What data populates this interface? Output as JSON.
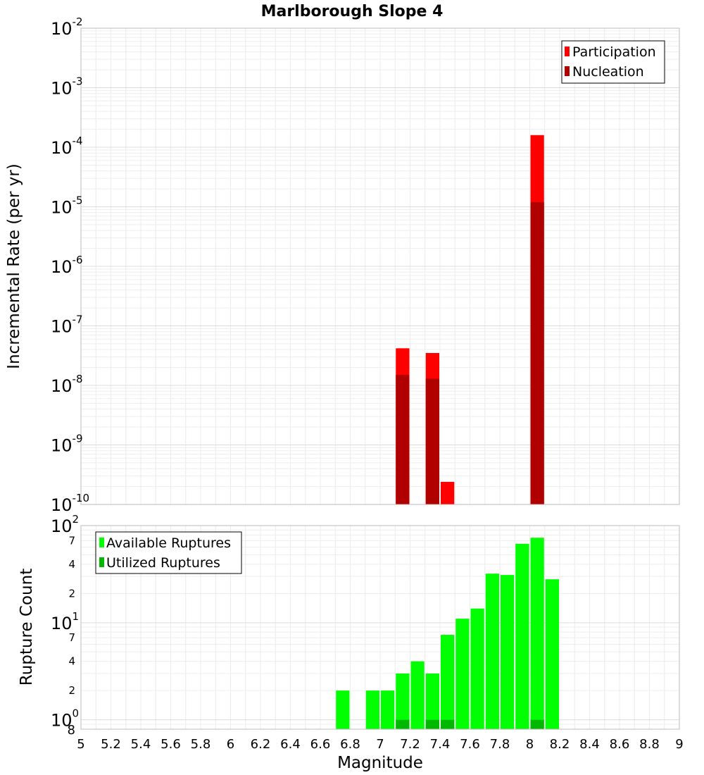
{
  "chart_data": [
    {
      "type": "bar",
      "title": "Marlborough Slope 4",
      "xlabel": "",
      "ylabel": "Incremental Rate (per yr)",
      "yscale": "log",
      "ylim": [
        1e-10,
        0.01
      ],
      "xlim": [
        5,
        9
      ],
      "bin_width": 0.1,
      "y_decades": [
        {
          "base": "10",
          "exp": "-10"
        },
        {
          "base": "10",
          "exp": "-9"
        },
        {
          "base": "10",
          "exp": "-8"
        },
        {
          "base": "10",
          "exp": "-7"
        },
        {
          "base": "10",
          "exp": "-6"
        },
        {
          "base": "10",
          "exp": "-5"
        },
        {
          "base": "10",
          "exp": "-4"
        },
        {
          "base": "10",
          "exp": "-3"
        },
        {
          "base": "10",
          "exp": "-2"
        }
      ],
      "legend": {
        "position": "top-right",
        "entries": [
          "Participation",
          "Nucleation"
        ]
      },
      "series": [
        {
          "name": "Participation",
          "color": "#ff0000",
          "points": [
            {
              "x": 7.15,
              "y": 4.2e-08
            },
            {
              "x": 7.35,
              "y": 3.5e-08
            },
            {
              "x": 7.45,
              "y": 2.4e-10
            },
            {
              "x": 8.05,
              "y": 0.00016
            }
          ]
        },
        {
          "name": "Nucleation",
          "color": "#b00000",
          "points": [
            {
              "x": 7.15,
              "y": 1.5e-08
            },
            {
              "x": 7.35,
              "y": 1.3e-08
            },
            {
              "x": 8.05,
              "y": 1.2e-05
            }
          ]
        }
      ]
    },
    {
      "type": "bar",
      "title": "",
      "xlabel": "Magnitude",
      "ylabel": "Rupture Count",
      "yscale": "log",
      "ylim": [
        0.8,
        100
      ],
      "xlim": [
        5,
        9
      ],
      "bin_width": 0.1,
      "x_ticks": [
        "5",
        "5.2",
        "5.4",
        "5.6",
        "5.8",
        "6",
        "6.2",
        "6.4",
        "6.6",
        "6.8",
        "7",
        "7.2",
        "7.4",
        "7.6",
        "7.8",
        "8",
        "8.2",
        "8.4",
        "8.6",
        "8.8",
        "9"
      ],
      "y_decades": [
        {
          "base": "10",
          "exp": "0"
        },
        {
          "base": "10",
          "exp": "1"
        },
        {
          "base": "10",
          "exp": "2"
        }
      ],
      "y_minor_labels": [
        {
          "value": 0.8,
          "label": "8"
        },
        {
          "value": 2,
          "label": "2"
        },
        {
          "value": 4,
          "label": "4"
        },
        {
          "value": 7,
          "label": "7"
        },
        {
          "value": 20,
          "label": "2"
        },
        {
          "value": 40,
          "label": "4"
        },
        {
          "value": 70,
          "label": "7"
        }
      ],
      "legend": {
        "position": "top-left",
        "entries": [
          "Available Ruptures",
          "Utilized Ruptures"
        ]
      },
      "series": [
        {
          "name": "Available Ruptures",
          "color": "#00ff00",
          "points": [
            {
              "x": 6.75,
              "y": 2
            },
            {
              "x": 6.95,
              "y": 2
            },
            {
              "x": 7.05,
              "y": 2
            },
            {
              "x": 7.15,
              "y": 3
            },
            {
              "x": 7.25,
              "y": 4
            },
            {
              "x": 7.35,
              "y": 3
            },
            {
              "x": 7.45,
              "y": 7.5
            },
            {
              "x": 7.55,
              "y": 11
            },
            {
              "x": 7.65,
              "y": 14
            },
            {
              "x": 7.75,
              "y": 32
            },
            {
              "x": 7.85,
              "y": 31
            },
            {
              "x": 7.95,
              "y": 65
            },
            {
              "x": 8.05,
              "y": 75
            },
            {
              "x": 8.15,
              "y": 28
            }
          ]
        },
        {
          "name": "Utilized Ruptures",
          "color": "#00b800",
          "points": [
            {
              "x": 7.15,
              "y": 1
            },
            {
              "x": 7.35,
              "y": 1
            },
            {
              "x": 7.45,
              "y": 1
            },
            {
              "x": 8.05,
              "y": 1
            }
          ]
        }
      ]
    }
  ]
}
